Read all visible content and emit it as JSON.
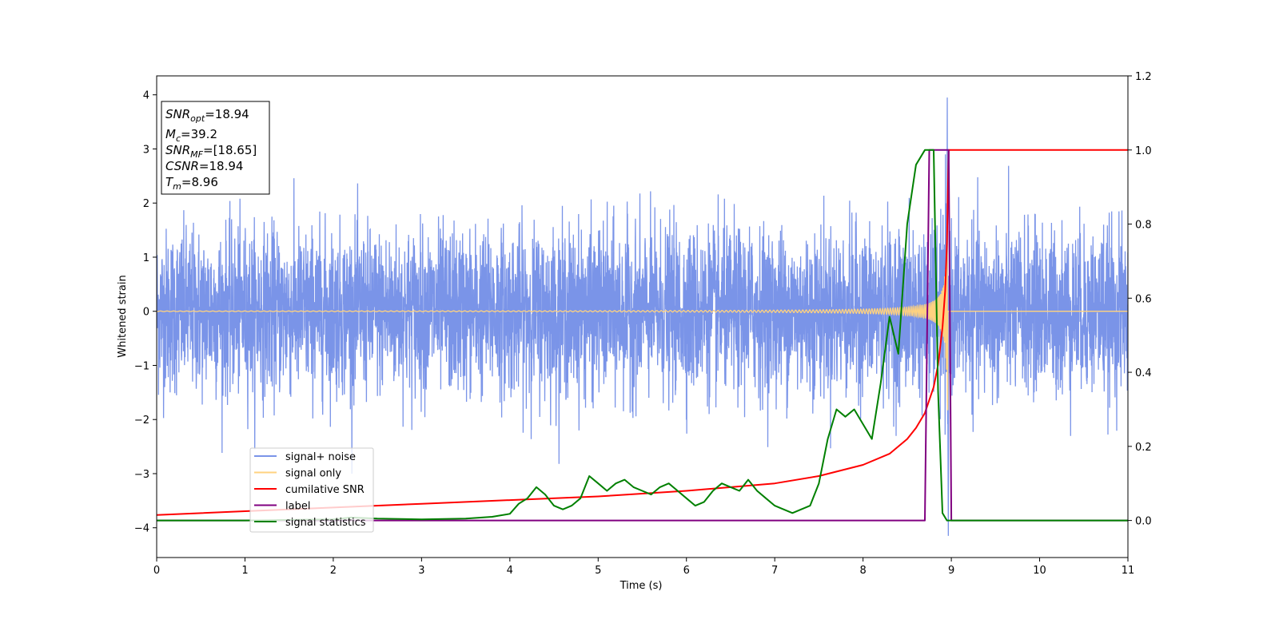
{
  "chart_data": {
    "type": "line",
    "xlabel": "Time (s)",
    "ylabel": "Whitened strain",
    "xlim": [
      0,
      11
    ],
    "ylim_left": [
      -4.55,
      4.35
    ],
    "ylim_right": [
      -0.1,
      1.2
    ],
    "x_ticks": [
      0,
      1,
      2,
      3,
      4,
      5,
      6,
      7,
      8,
      9,
      10,
      11
    ],
    "y_left_ticks": [
      -4,
      -3,
      -2,
      -1,
      0,
      1,
      2,
      3,
      4
    ],
    "y_right_ticks": [
      "0.0",
      "0.2",
      "0.4",
      "0.6",
      "0.8",
      "1.0",
      "1.2"
    ],
    "info_box": {
      "snr_opt": {
        "main": "SNR",
        "sub": "opt",
        "value": "=18.94"
      },
      "mc": {
        "main": "M",
        "sub": "c",
        "value": "=39.2"
      },
      "snr_mf": {
        "main": "SNR",
        "sub": "MF",
        "value": "=[18.65]"
      },
      "csnr": {
        "main": "CSNR",
        "value": "=18.94"
      },
      "tm": {
        "main": "T",
        "sub": "m",
        "value": "=8.96"
      }
    },
    "legend": {
      "placement": "lower-left",
      "entries": [
        {
          "label": "signal+ noise",
          "color": "#7a94e8"
        },
        {
          "label": "signal only",
          "color": "#ffd27f"
        },
        {
          "label": "cumilative SNR",
          "color": "#ff0000"
        },
        {
          "label": "label",
          "color": "#800080"
        },
        {
          "label": "signal statistics",
          "color": "#008000"
        }
      ]
    },
    "series": [
      {
        "name": "signal+ noise",
        "axis": "left",
        "color": "#7a94e8",
        "description_values": {
          "noise_sigma": 0.75,
          "peak_max": 3.95,
          "peak_min": -4.15,
          "peak_time": 8.96
        }
      },
      {
        "name": "signal only",
        "axis": "left",
        "color": "#ffd27f",
        "chirp": {
          "start": 0.0,
          "merger": 8.96,
          "amplitude_at_merger": 3.3
        }
      },
      {
        "name": "cumilative SNR",
        "axis": "right",
        "color": "#ff0000",
        "x": [
          0,
          1,
          2,
          3,
          4,
          5,
          6,
          7,
          7.5,
          8,
          8.3,
          8.5,
          8.6,
          8.7,
          8.8,
          8.85,
          8.9,
          8.93,
          8.95,
          8.97,
          11
        ],
        "y": [
          0.015,
          0.025,
          0.035,
          0.045,
          0.055,
          0.065,
          0.08,
          0.1,
          0.12,
          0.15,
          0.18,
          0.22,
          0.25,
          0.29,
          0.36,
          0.42,
          0.52,
          0.62,
          0.75,
          1.0,
          1.0
        ]
      },
      {
        "name": "label",
        "axis": "right",
        "color": "#800080",
        "x": [
          0,
          8.7,
          8.75,
          8.97,
          9.0,
          11
        ],
        "y": [
          0,
          0,
          1,
          1,
          0,
          0
        ]
      },
      {
        "name": "signal statistics",
        "axis": "right",
        "color": "#008000",
        "x": [
          0,
          1,
          2,
          2.2,
          2.5,
          3,
          3.5,
          3.8,
          4.0,
          4.1,
          4.2,
          4.3,
          4.4,
          4.5,
          4.6,
          4.7,
          4.8,
          4.9,
          5.0,
          5.1,
          5.2,
          5.3,
          5.4,
          5.5,
          5.6,
          5.7,
          5.8,
          5.9,
          6.0,
          6.1,
          6.2,
          6.3,
          6.4,
          6.5,
          6.6,
          6.7,
          6.8,
          6.9,
          7.0,
          7.1,
          7.2,
          7.3,
          7.4,
          7.5,
          7.6,
          7.7,
          7.8,
          7.9,
          8.0,
          8.1,
          8.2,
          8.3,
          8.4,
          8.5,
          8.6,
          8.7,
          8.8,
          8.85,
          8.9,
          8.95,
          9.0,
          9.05,
          11
        ],
        "y": [
          0,
          0,
          0.003,
          0.008,
          0.005,
          0.003,
          0.005,
          0.01,
          0.018,
          0.045,
          0.06,
          0.09,
          0.07,
          0.04,
          0.03,
          0.04,
          0.06,
          0.12,
          0.1,
          0.08,
          0.1,
          0.11,
          0.09,
          0.08,
          0.07,
          0.09,
          0.1,
          0.08,
          0.06,
          0.04,
          0.05,
          0.08,
          0.1,
          0.09,
          0.08,
          0.11,
          0.08,
          0.06,
          0.04,
          0.03,
          0.02,
          0.03,
          0.04,
          0.1,
          0.22,
          0.3,
          0.28,
          0.3,
          0.26,
          0.22,
          0.37,
          0.55,
          0.45,
          0.8,
          0.96,
          1.0,
          1.0,
          0.35,
          0.02,
          0.0,
          0.0,
          0.0,
          0.0
        ]
      }
    ]
  }
}
